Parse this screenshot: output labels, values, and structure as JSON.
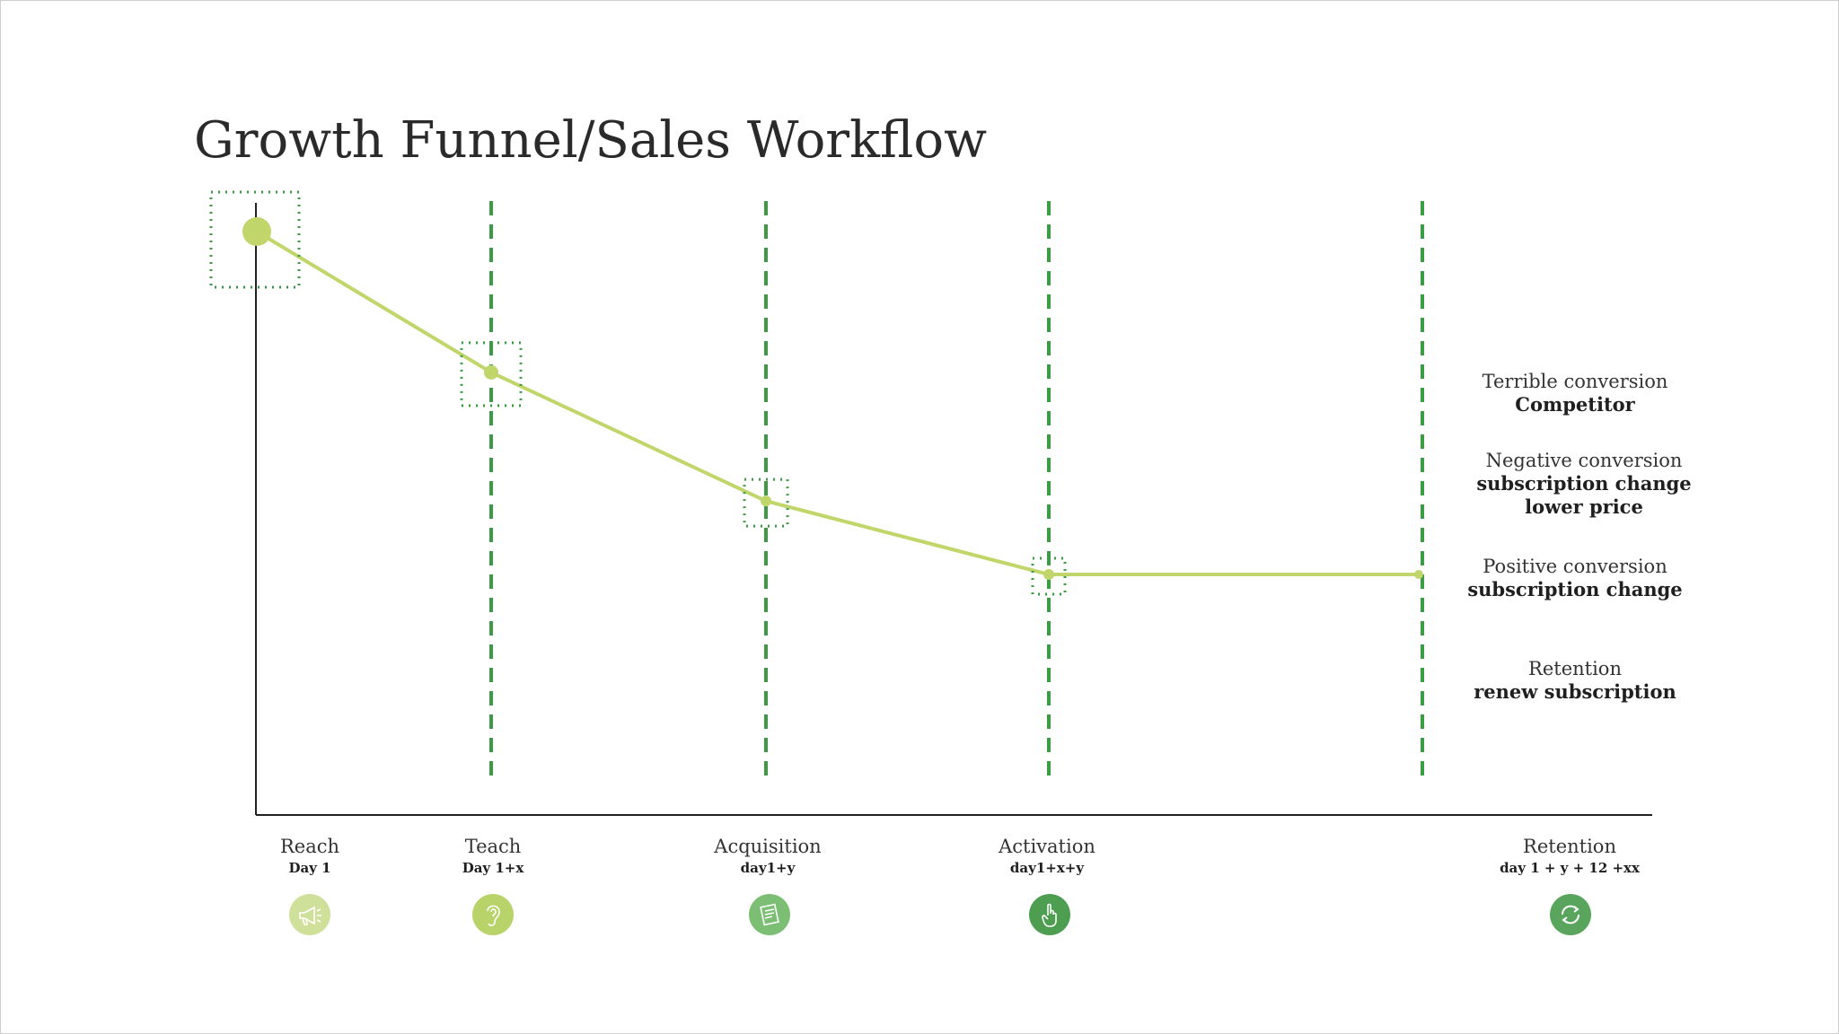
{
  "title": "Growth Funnel/Sales Workflow",
  "stages": [
    {
      "name": "Reach",
      "day": "Day 1",
      "icon": "megaphone-icon",
      "color": "#cfe09a"
    },
    {
      "name": "Teach",
      "day": "Day 1+x",
      "icon": "ear-icon",
      "color": "#b9d36b"
    },
    {
      "name": "Acquisition",
      "day": "day1+y",
      "icon": "document-icon",
      "color": "#7cbf74"
    },
    {
      "name": "Activation",
      "day": "day1+x+y",
      "icon": "hand-pointer-icon",
      "color": "#4e9e52"
    },
    {
      "name": "Retention",
      "day": "day 1 + y + 12 +xx",
      "icon": "refresh-icon",
      "color": "#5aa55e"
    }
  ],
  "legend": [
    {
      "line1": "Terrible conversion",
      "line2": "Competitor",
      "line3": ""
    },
    {
      "line1": "Negative conversion",
      "line2": "subscription change",
      "line3": "lower price"
    },
    {
      "line1": "Positive conversion",
      "line2": "subscription change",
      "line3": ""
    },
    {
      "line1": "Retention",
      "line2": "renew subscription",
      "line3": ""
    }
  ],
  "colors": {
    "line": "#c0d66a",
    "dashed": "#3f9a48",
    "axis": "#222222"
  },
  "chart_data": {
    "type": "line",
    "categories": [
      "Reach",
      "Teach",
      "Acquisition",
      "Activation",
      "Retention"
    ],
    "values": [
      100,
      77,
      56,
      44,
      44
    ],
    "ylim": [
      0,
      105
    ],
    "title": "Growth Funnel/Sales Workflow",
    "xlabel": "",
    "ylabel": "",
    "grid": false
  }
}
